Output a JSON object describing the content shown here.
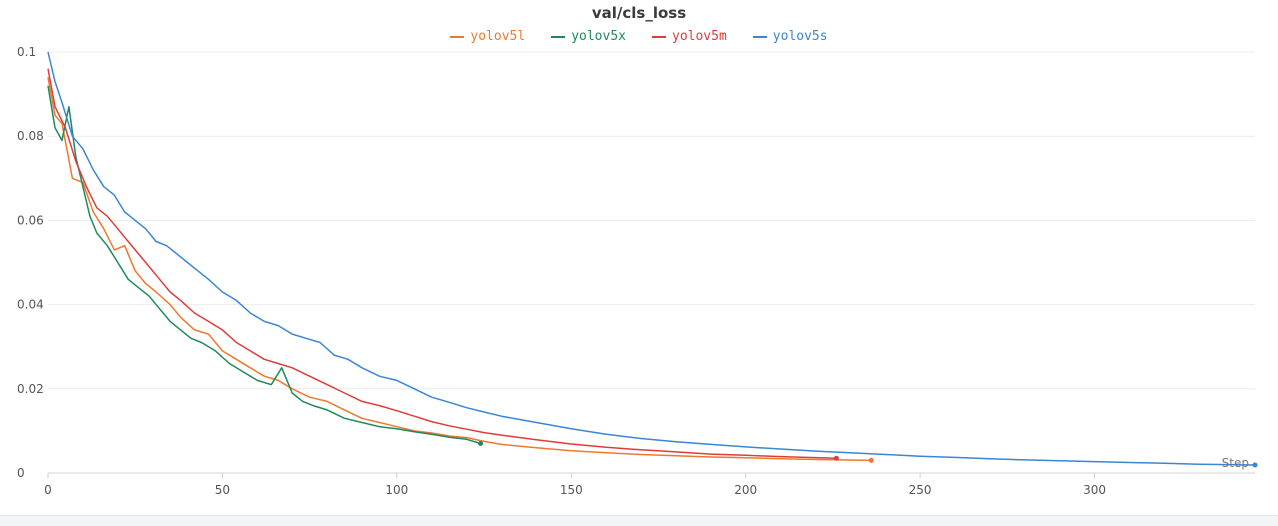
{
  "chart_data": {
    "type": "line",
    "title": "val/cls_loss",
    "xlabel": "Step",
    "ylabel": "",
    "xlim": [
      0,
      346
    ],
    "ylim": [
      0,
      0.1
    ],
    "x_ticks": [
      "0",
      "50",
      "100",
      "150",
      "200",
      "250",
      "300"
    ],
    "y_ticks": [
      "0",
      "0.02",
      "0.04",
      "0.06",
      "0.08",
      "0.1"
    ],
    "grid": true,
    "legend_position": "top-center",
    "series": [
      {
        "name": "yolov5l",
        "color": "#f0782d",
        "x": [
          0,
          2,
          4,
          7,
          10,
          13,
          16,
          19,
          22,
          25,
          28,
          31,
          35,
          38,
          42,
          46,
          50,
          54,
          58,
          62,
          66,
          70,
          75,
          80,
          85,
          90,
          95,
          100,
          105,
          110,
          115,
          120,
          125,
          130,
          140,
          150,
          160,
          170,
          180,
          190,
          200,
          210,
          220,
          236
        ],
        "y": [
          0.094,
          0.085,
          0.083,
          0.07,
          0.069,
          0.062,
          0.058,
          0.053,
          0.054,
          0.048,
          0.045,
          0.043,
          0.04,
          0.037,
          0.034,
          0.033,
          0.029,
          0.027,
          0.025,
          0.023,
          0.022,
          0.02,
          0.018,
          0.017,
          0.015,
          0.013,
          0.012,
          0.011,
          0.01,
          0.0095,
          0.0088,
          0.0084,
          0.0075,
          0.0068,
          0.006,
          0.0053,
          0.0048,
          0.0044,
          0.0041,
          0.0038,
          0.0036,
          0.0034,
          0.0032,
          0.003
        ]
      },
      {
        "name": "yolov5x",
        "color": "#1e8a5a",
        "x": [
          0,
          2,
          4,
          6,
          8,
          10,
          12,
          14,
          17,
          20,
          23,
          26,
          29,
          32,
          35,
          38,
          41,
          44,
          48,
          52,
          56,
          60,
          64,
          67,
          70,
          73,
          76,
          80,
          85,
          90,
          95,
          100,
          105,
          110,
          115,
          120,
          124
        ],
        "y": [
          0.092,
          0.082,
          0.079,
          0.087,
          0.075,
          0.068,
          0.061,
          0.057,
          0.054,
          0.05,
          0.046,
          0.044,
          0.042,
          0.039,
          0.036,
          0.034,
          0.032,
          0.031,
          0.029,
          0.026,
          0.024,
          0.022,
          0.021,
          0.025,
          0.019,
          0.017,
          0.016,
          0.015,
          0.013,
          0.012,
          0.011,
          0.0105,
          0.0098,
          0.0092,
          0.0085,
          0.008,
          0.007
        ]
      },
      {
        "name": "yolov5m",
        "color": "#e03b3b",
        "x": [
          0,
          2,
          5,
          8,
          11,
          14,
          17,
          20,
          23,
          26,
          29,
          32,
          35,
          38,
          42,
          46,
          50,
          54,
          58,
          62,
          66,
          70,
          75,
          80,
          85,
          90,
          95,
          100,
          105,
          110,
          115,
          120,
          125,
          130,
          140,
          150,
          160,
          170,
          180,
          190,
          200,
          210,
          226
        ],
        "y": [
          0.096,
          0.087,
          0.082,
          0.074,
          0.068,
          0.063,
          0.061,
          0.058,
          0.055,
          0.052,
          0.049,
          0.046,
          0.043,
          0.041,
          0.038,
          0.036,
          0.034,
          0.031,
          0.029,
          0.027,
          0.026,
          0.025,
          0.023,
          0.021,
          0.019,
          0.017,
          0.016,
          0.0148,
          0.0135,
          0.0122,
          0.0112,
          0.0104,
          0.0096,
          0.009,
          0.0079,
          0.0069,
          0.0061,
          0.0055,
          0.005,
          0.0045,
          0.0042,
          0.0039,
          0.0035
        ]
      },
      {
        "name": "yolov5s",
        "color": "#3a86d4",
        "x": [
          0,
          2,
          4,
          7,
          10,
          13,
          16,
          19,
          22,
          25,
          28,
          31,
          34,
          37,
          40,
          43,
          46,
          50,
          54,
          58,
          62,
          66,
          70,
          74,
          78,
          82,
          86,
          90,
          95,
          100,
          105,
          110,
          115,
          120,
          125,
          130,
          140,
          150,
          160,
          170,
          180,
          190,
          200,
          210,
          220,
          230,
          240,
          250,
          260,
          270,
          280,
          290,
          300,
          310,
          320,
          330,
          346
        ],
        "y": [
          0.1,
          0.093,
          0.088,
          0.08,
          0.077,
          0.072,
          0.068,
          0.066,
          0.062,
          0.06,
          0.058,
          0.055,
          0.054,
          0.052,
          0.05,
          0.048,
          0.046,
          0.043,
          0.041,
          0.038,
          0.036,
          0.035,
          0.033,
          0.032,
          0.031,
          0.028,
          0.027,
          0.025,
          0.023,
          0.022,
          0.02,
          0.018,
          0.0168,
          0.0155,
          0.0145,
          0.0135,
          0.012,
          0.0105,
          0.0092,
          0.0082,
          0.0074,
          0.0068,
          0.0062,
          0.0057,
          0.0052,
          0.0048,
          0.0044,
          0.004,
          0.0037,
          0.0034,
          0.0031,
          0.0029,
          0.0027,
          0.0025,
          0.0023,
          0.0021,
          0.0019
        ]
      }
    ]
  }
}
